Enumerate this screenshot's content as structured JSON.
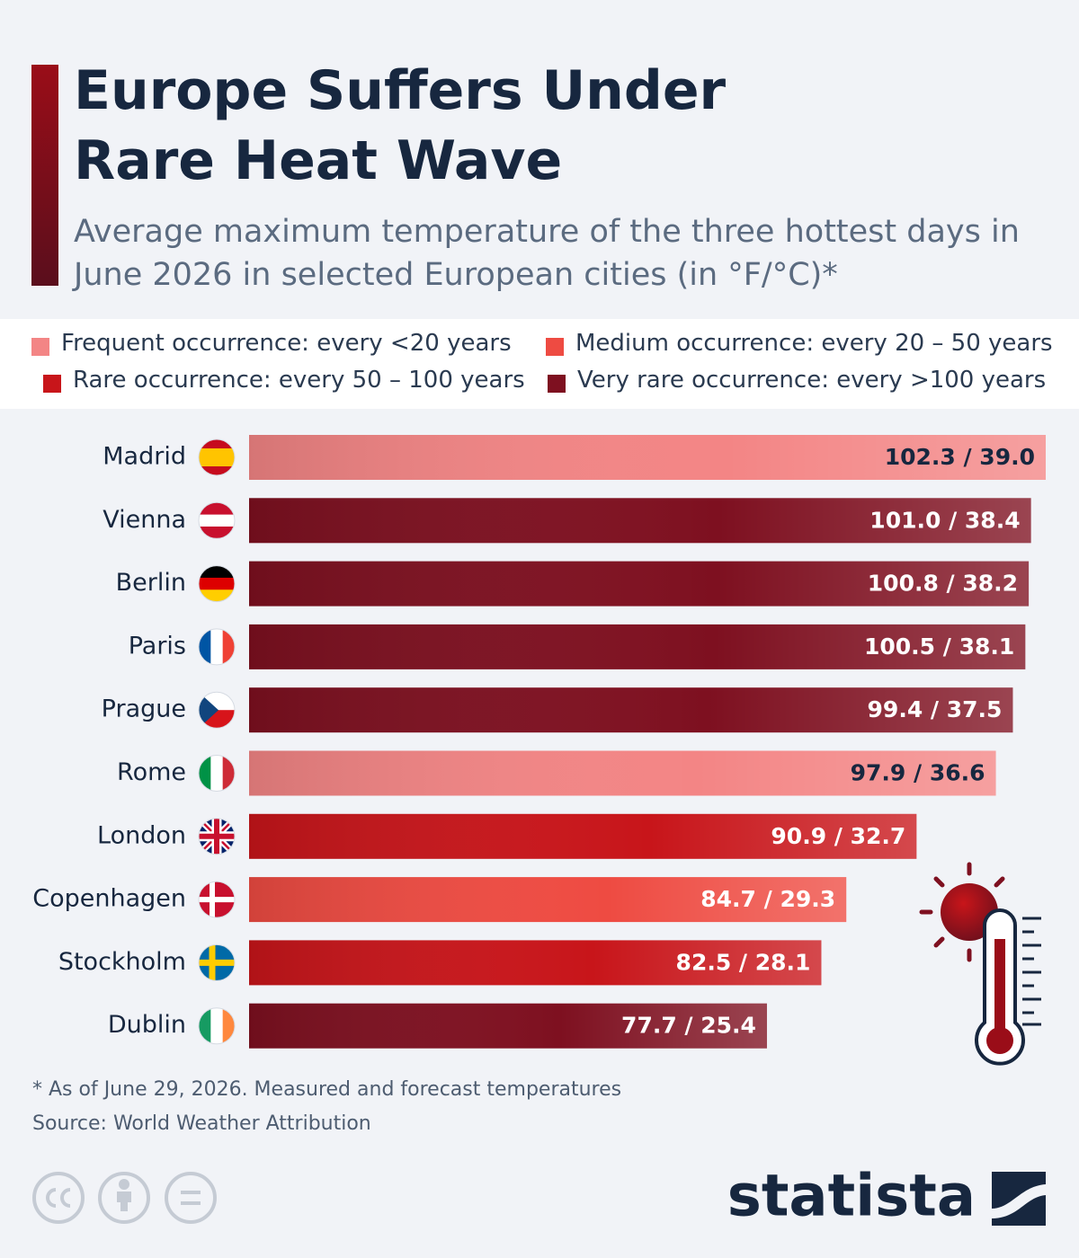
{
  "chart_data": {
    "type": "bar",
    "title": "Europe Suffers Under Rare Heat Wave",
    "subtitle": "Average maximum temperature of the three hottest days in June 2026 in selected European cities (in °F/°C)*",
    "legend": {
      "labels": [
        "Frequent occurrence: every <20 years",
        "Medium occurrence: every 20 – 50 years",
        "Rare occurrence: every 50 – 100 years",
        "Very rare occurrence: every >100 years"
      ],
      "colors": [
        "#f38585",
        "#ee4b42",
        "#c8151a",
        "#7e1020"
      ]
    },
    "categories": [
      "Madrid",
      "Vienna",
      "Berlin",
      "Paris",
      "Prague",
      "Rome",
      "London",
      "Copenhagen",
      "Stockholm",
      "Dublin"
    ],
    "values": [
      102.3,
      101.0,
      100.8,
      100.5,
      99.4,
      97.9,
      90.9,
      84.7,
      82.5,
      77.7
    ],
    "value_labels": [
      "102.3 / 39.0",
      "101.0 / 38.4",
      "100.8 / 38.2",
      "100.5 / 38.1",
      "99.4 / 37.5",
      "97.9 / 36.6",
      "90.9 / 32.7",
      "84.7 / 29.3",
      "82.5 / 28.1",
      "77.7 / 25.4"
    ],
    "colors": [
      "#f38585",
      "#7e1020",
      "#7e1020",
      "#7e1020",
      "#7e1020",
      "#f38585",
      "#c8151a",
      "#ee4b42",
      "#c8151a",
      "#7e1020"
    ],
    "xlim": [
      32,
      102.3
    ],
    "note": "* As of June 29, 2026. Measured and forecast temperatures",
    "source": "Source: World Weather Attribution",
    "brand": "statista"
  }
}
